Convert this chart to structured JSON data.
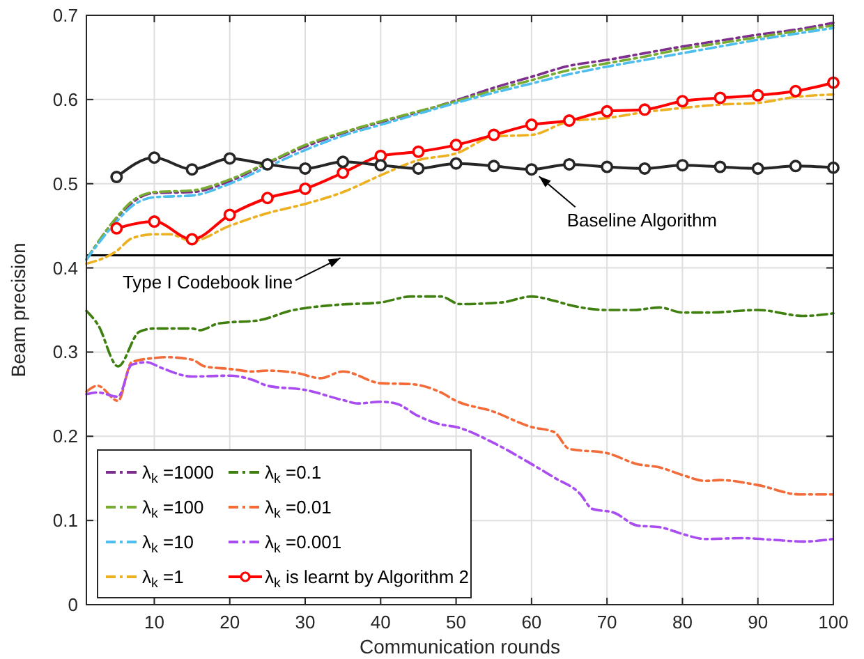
{
  "chart_data": {
    "type": "line",
    "xlabel": "Communication rounds",
    "ylabel": "Beam precision",
    "xlim": [
      1,
      100
    ],
    "xticks": [
      10,
      20,
      30,
      40,
      50,
      60,
      70,
      80,
      90,
      100
    ],
    "ylim": [
      0,
      0.7
    ],
    "yticks": [
      0,
      0.1,
      0.2,
      0.3,
      0.4,
      0.5,
      0.6,
      0.7
    ],
    "grid": true,
    "legend": "bottom left",
    "series": [
      {
        "name": "λ$_{k}$ =1000",
        "color": "#7e2f8e",
        "line_style": "dashed",
        "marker": "none",
        "x": [
          1,
          5,
          7,
          10,
          15,
          20,
          25,
          30,
          35,
          40,
          45,
          50,
          55,
          60,
          65,
          70,
          75,
          80,
          85,
          90,
          95,
          100
        ],
        "values": [
          0.41,
          0.459,
          0.477,
          0.489,
          0.49,
          0.503,
          0.524,
          0.544,
          0.56,
          0.573,
          0.585,
          0.599,
          0.614,
          0.627,
          0.64,
          0.647,
          0.655,
          0.663,
          0.67,
          0.677,
          0.683,
          0.691
        ]
      },
      {
        "name": "λ$_{k}$ =100",
        "color": "#77ac30",
        "line_style": "dashed",
        "marker": "none",
        "x": [
          1,
          5,
          7,
          10,
          15,
          20,
          25,
          30,
          35,
          40,
          45,
          50,
          55,
          60,
          65,
          70,
          75,
          80,
          85,
          90,
          95,
          100
        ],
        "values": [
          0.41,
          0.46,
          0.479,
          0.49,
          0.492,
          0.505,
          0.525,
          0.546,
          0.561,
          0.574,
          0.586,
          0.598,
          0.611,
          0.623,
          0.635,
          0.643,
          0.651,
          0.66,
          0.667,
          0.674,
          0.681,
          0.688
        ]
      },
      {
        "name": "λ$_{k}$ =10",
        "color": "#4dbeee",
        "line_style": "dashed",
        "marker": "none",
        "x": [
          1,
          5,
          7,
          10,
          15,
          20,
          25,
          30,
          35,
          40,
          45,
          50,
          55,
          60,
          65,
          70,
          75,
          80,
          85,
          90,
          95,
          100
        ],
        "values": [
          0.41,
          0.455,
          0.473,
          0.484,
          0.486,
          0.5,
          0.52,
          0.54,
          0.557,
          0.57,
          0.583,
          0.596,
          0.608,
          0.619,
          0.63,
          0.639,
          0.647,
          0.655,
          0.663,
          0.671,
          0.678,
          0.685
        ]
      },
      {
        "name": "λ$_{k}$ =1",
        "color": "#edb120",
        "line_style": "dashed",
        "marker": "none",
        "x": [
          1,
          5,
          7,
          10,
          12,
          15,
          20,
          25,
          30,
          35,
          40,
          45,
          50,
          55,
          60,
          65,
          70,
          75,
          80,
          85,
          90,
          95,
          100
        ],
        "values": [
          0.405,
          0.42,
          0.435,
          0.44,
          0.44,
          0.432,
          0.45,
          0.465,
          0.476,
          0.49,
          0.51,
          0.528,
          0.536,
          0.556,
          0.558,
          0.574,
          0.578,
          0.585,
          0.59,
          0.594,
          0.596,
          0.603,
          0.606
        ]
      },
      {
        "name": "λ$_{k}$ =0.1",
        "color": "#3f7f10",
        "line_style": "dashed",
        "marker": "none",
        "x": [
          1,
          2.5,
          5.2,
          8,
          10,
          15,
          16,
          18.5,
          24,
          28,
          34,
          40,
          44,
          48,
          50.5,
          56,
          60,
          63,
          65,
          70,
          73.5,
          77,
          80,
          83.5,
          90,
          96,
          100
        ],
        "values": [
          0.349,
          0.333,
          0.283,
          0.324,
          0.328,
          0.328,
          0.326,
          0.334,
          0.338,
          0.349,
          0.356,
          0.359,
          0.366,
          0.366,
          0.357,
          0.359,
          0.366,
          0.361,
          0.356,
          0.35,
          0.35,
          0.353,
          0.347,
          0.347,
          0.35,
          0.343,
          0.346
        ]
      },
      {
        "name": "λ$_{k}$ =0.01",
        "color": "#f26b38",
        "line_style": "dashed",
        "marker": "none",
        "x": [
          1,
          2.5,
          5.2,
          7,
          10,
          11.5,
          15,
          16.7,
          20,
          23,
          25,
          29,
          32,
          35,
          40,
          44,
          48,
          50,
          54.7,
          60,
          63,
          65,
          70,
          74,
          77,
          80,
          83,
          85,
          90,
          95.5,
          100
        ],
        "values": [
          0.253,
          0.26,
          0.242,
          0.288,
          0.293,
          0.294,
          0.291,
          0.283,
          0.28,
          0.277,
          0.278,
          0.275,
          0.269,
          0.277,
          0.263,
          0.262,
          0.252,
          0.242,
          0.23,
          0.211,
          0.205,
          0.185,
          0.18,
          0.167,
          0.163,
          0.154,
          0.147,
          0.148,
          0.142,
          0.131,
          0.131
        ]
      },
      {
        "name": "λ$_{k}$ =0.001",
        "color": "#a94cf0",
        "line_style": "dashed",
        "marker": "none",
        "x": [
          1,
          2.5,
          5.2,
          7,
          9,
          11,
          15,
          20,
          23,
          25,
          30,
          35,
          37,
          40,
          42,
          45,
          48,
          50,
          55,
          60,
          63,
          66.5,
          68,
          71,
          74,
          77,
          80,
          83,
          88,
          92,
          96,
          100
        ],
        "values": [
          0.25,
          0.252,
          0.247,
          0.285,
          0.288,
          0.281,
          0.271,
          0.272,
          0.267,
          0.26,
          0.255,
          0.243,
          0.239,
          0.241,
          0.239,
          0.224,
          0.214,
          0.211,
          0.192,
          0.167,
          0.151,
          0.131,
          0.114,
          0.109,
          0.094,
          0.092,
          0.084,
          0.078,
          0.079,
          0.077,
          0.075,
          0.078
        ]
      },
      {
        "name": "λ$_{k}$ is learnt by Algorithm 2",
        "color": "#ff0000",
        "line_style": "solid",
        "marker": "circle",
        "x": [
          5,
          10,
          15,
          20,
          25,
          30,
          35,
          40,
          45,
          50,
          55,
          60,
          65,
          70,
          75,
          80,
          85,
          90,
          95,
          100
        ],
        "values": [
          0.447,
          0.455,
          0.434,
          0.463,
          0.483,
          0.494,
          0.513,
          0.533,
          0.538,
          0.546,
          0.558,
          0.57,
          0.575,
          0.586,
          0.588,
          0.598,
          0.602,
          0.605,
          0.61,
          0.62
        ]
      },
      {
        "color": "#262626",
        "line_style": "solid",
        "marker": "circle",
        "x": [
          5,
          10,
          15,
          20,
          25,
          30,
          35,
          40,
          45,
          50,
          55,
          60,
          65,
          70,
          75,
          80,
          85,
          90,
          95,
          100
        ],
        "values": [
          0.508,
          0.531,
          0.517,
          0.53,
          0.523,
          0.518,
          0.526,
          0.522,
          0.518,
          0.524,
          0.521,
          0.517,
          0.523,
          0.52,
          0.518,
          0.522,
          0.52,
          0.518,
          0.521,
          0.519
        ]
      }
    ],
    "ref_lines": [
      {
        "axis": "y",
        "value": 0.415,
        "label": "Type I Codebook line",
        "color": "#000000"
      }
    ],
    "annotations": [
      {
        "text": "Baseline Algorithm",
        "x": 61,
        "y": 0.517
      }
    ]
  }
}
